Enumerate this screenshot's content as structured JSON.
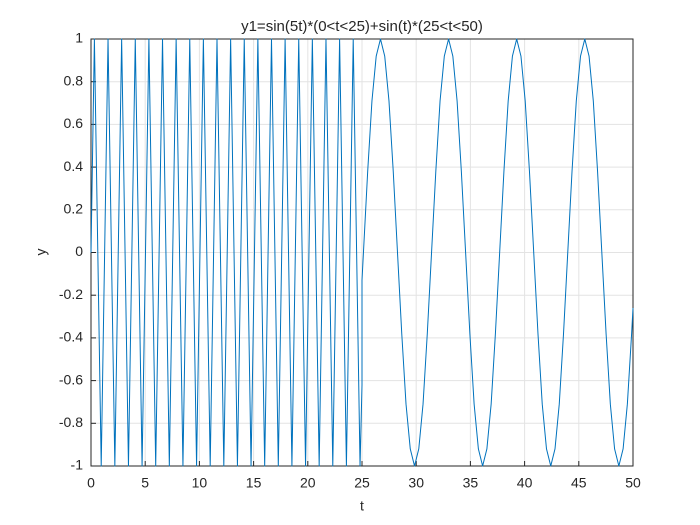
{
  "chart_data": {
    "type": "line",
    "title": "y1=sin(5t)*(0<t<25)+sin(t)*(25<t<50)",
    "xlabel": "t",
    "ylabel": "y",
    "xlim": [
      0,
      50
    ],
    "ylim": [
      -1,
      1
    ],
    "xticks": [
      0,
      5,
      10,
      15,
      20,
      25,
      30,
      35,
      40,
      45,
      50
    ],
    "yticks": [
      -1,
      -0.8,
      -0.6,
      -0.4,
      -0.2,
      0,
      0.2,
      0.4,
      0.6,
      0.8,
      1
    ],
    "grid": true,
    "color": "#0072bd",
    "x": [
      0,
      0.314,
      0.628,
      0.942,
      1.257,
      1.571,
      1.885,
      2.199,
      2.513,
      2.827,
      3.142,
      3.456,
      3.77,
      4.084,
      4.398,
      4.712,
      5.027,
      5.341,
      5.655,
      5.969,
      6.283,
      6.597,
      6.912,
      7.226,
      7.54,
      7.854,
      8.168,
      8.482,
      8.796,
      9.111,
      9.425,
      9.739,
      10.053,
      10.367,
      10.681,
      10.996,
      11.31,
      11.624,
      11.938,
      12.252,
      12.566,
      12.881,
      13.195,
      13.509,
      13.823,
      14.137,
      14.451,
      14.765,
      15.08,
      15.394,
      15.708,
      16.022,
      16.336,
      16.65,
      16.965,
      17.279,
      17.593,
      17.907,
      18.221,
      18.535,
      18.85,
      19.164,
      19.478,
      19.792,
      20.106,
      20.42,
      20.735,
      21.049,
      21.363,
      21.677,
      21.991,
      22.305,
      22.619,
      22.934,
      23.248,
      23.562,
      23.876,
      24.19,
      24.504,
      24.819,
      25,
      25,
      25.133,
      25.525,
      25.918,
      26.311,
      26.704,
      27.096,
      27.489,
      27.882,
      28.274,
      28.667,
      29.06,
      29.452,
      29.845,
      30.238,
      30.631,
      31.023,
      31.416,
      31.809,
      32.201,
      32.594,
      32.987,
      33.379,
      33.772,
      34.165,
      34.558,
      34.95,
      35.343,
      35.736,
      36.128,
      36.521,
      36.914,
      37.306,
      37.699,
      38.092,
      38.485,
      38.877,
      39.27,
      39.663,
      40.055,
      40.448,
      40.841,
      41.233,
      41.626,
      42.019,
      42.412,
      42.804,
      43.197,
      43.59,
      43.982,
      44.375,
      44.768,
      45.16,
      45.553,
      45.946,
      46.338,
      46.731,
      47.124,
      47.517,
      47.909,
      48.302,
      48.695,
      49.087,
      49.48,
      49.873,
      50
    ],
    "values": [
      0,
      1,
      0,
      -1,
      0,
      1,
      0,
      -1,
      0,
      1,
      0,
      -1,
      0,
      1,
      0,
      -1,
      0,
      1,
      0,
      -1,
      0,
      1,
      0,
      -1,
      0,
      1,
      0,
      -1,
      0,
      1,
      0,
      -1,
      0,
      1,
      0,
      -1,
      0,
      1,
      0,
      -1,
      0,
      1,
      0,
      -1,
      0,
      1,
      0,
      -1,
      0,
      1,
      0,
      -1,
      0,
      1,
      0,
      -1,
      0,
      1,
      0,
      -1,
      0,
      1,
      0,
      -1,
      0,
      1,
      0,
      -1,
      0,
      1,
      0,
      -1,
      0,
      1,
      0,
      -1,
      0,
      1,
      0,
      -1,
      -0.62,
      -0.13,
      0,
      0.38,
      0.71,
      0.92,
      1,
      0.92,
      0.71,
      0.38,
      0,
      -0.38,
      -0.71,
      -0.92,
      -1,
      -0.92,
      -0.71,
      -0.38,
      0,
      0.38,
      0.71,
      0.92,
      1,
      0.92,
      0.71,
      0.38,
      0,
      -0.38,
      -0.71,
      -0.92,
      -1,
      -0.92,
      -0.71,
      -0.38,
      0,
      0.38,
      0.71,
      0.92,
      1,
      0.92,
      0.71,
      0.38,
      0,
      -0.38,
      -0.71,
      -0.92,
      -1,
      -0.92,
      -0.71,
      -0.38,
      0,
      0.38,
      0.71,
      0.92,
      1,
      0.92,
      0.71,
      0.38,
      0,
      -0.38,
      -0.71,
      -0.92,
      -1,
      -0.92,
      -0.71,
      -0.38,
      -0.26
    ]
  }
}
